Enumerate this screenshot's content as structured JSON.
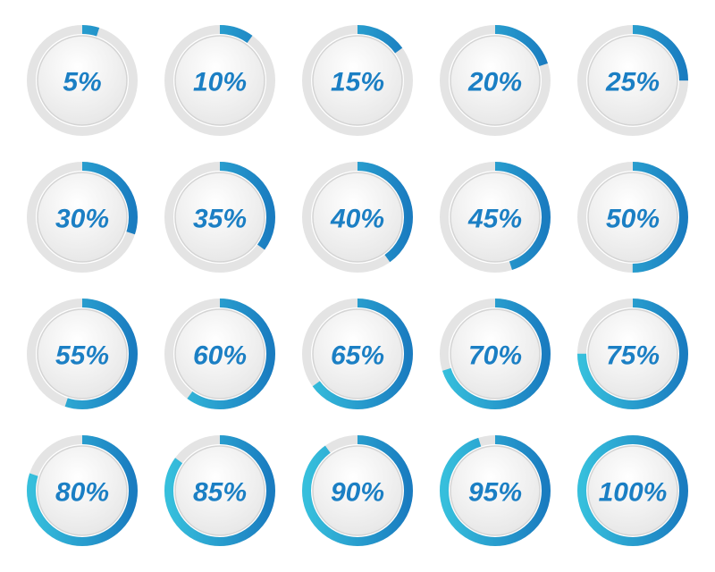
{
  "chart_data": {
    "type": "progress-ring",
    "values": [
      5,
      10,
      15,
      20,
      25,
      30,
      35,
      40,
      45,
      50,
      55,
      60,
      65,
      70,
      75,
      80,
      85,
      90,
      95,
      100
    ],
    "value_labels": [
      "5%",
      "10%",
      "15%",
      "20%",
      "25%",
      "30%",
      "35%",
      "40%",
      "45%",
      "50%",
      "55%",
      "60%",
      "65%",
      "70%",
      "75%",
      "80%",
      "85%",
      "90%",
      "95%",
      "100%"
    ],
    "max": 100,
    "columns": 5,
    "color": "#1a7cc0",
    "color_light": "#36bfdc",
    "track_color": "#e4e4e4",
    "label_color": "#1b7fc4"
  }
}
